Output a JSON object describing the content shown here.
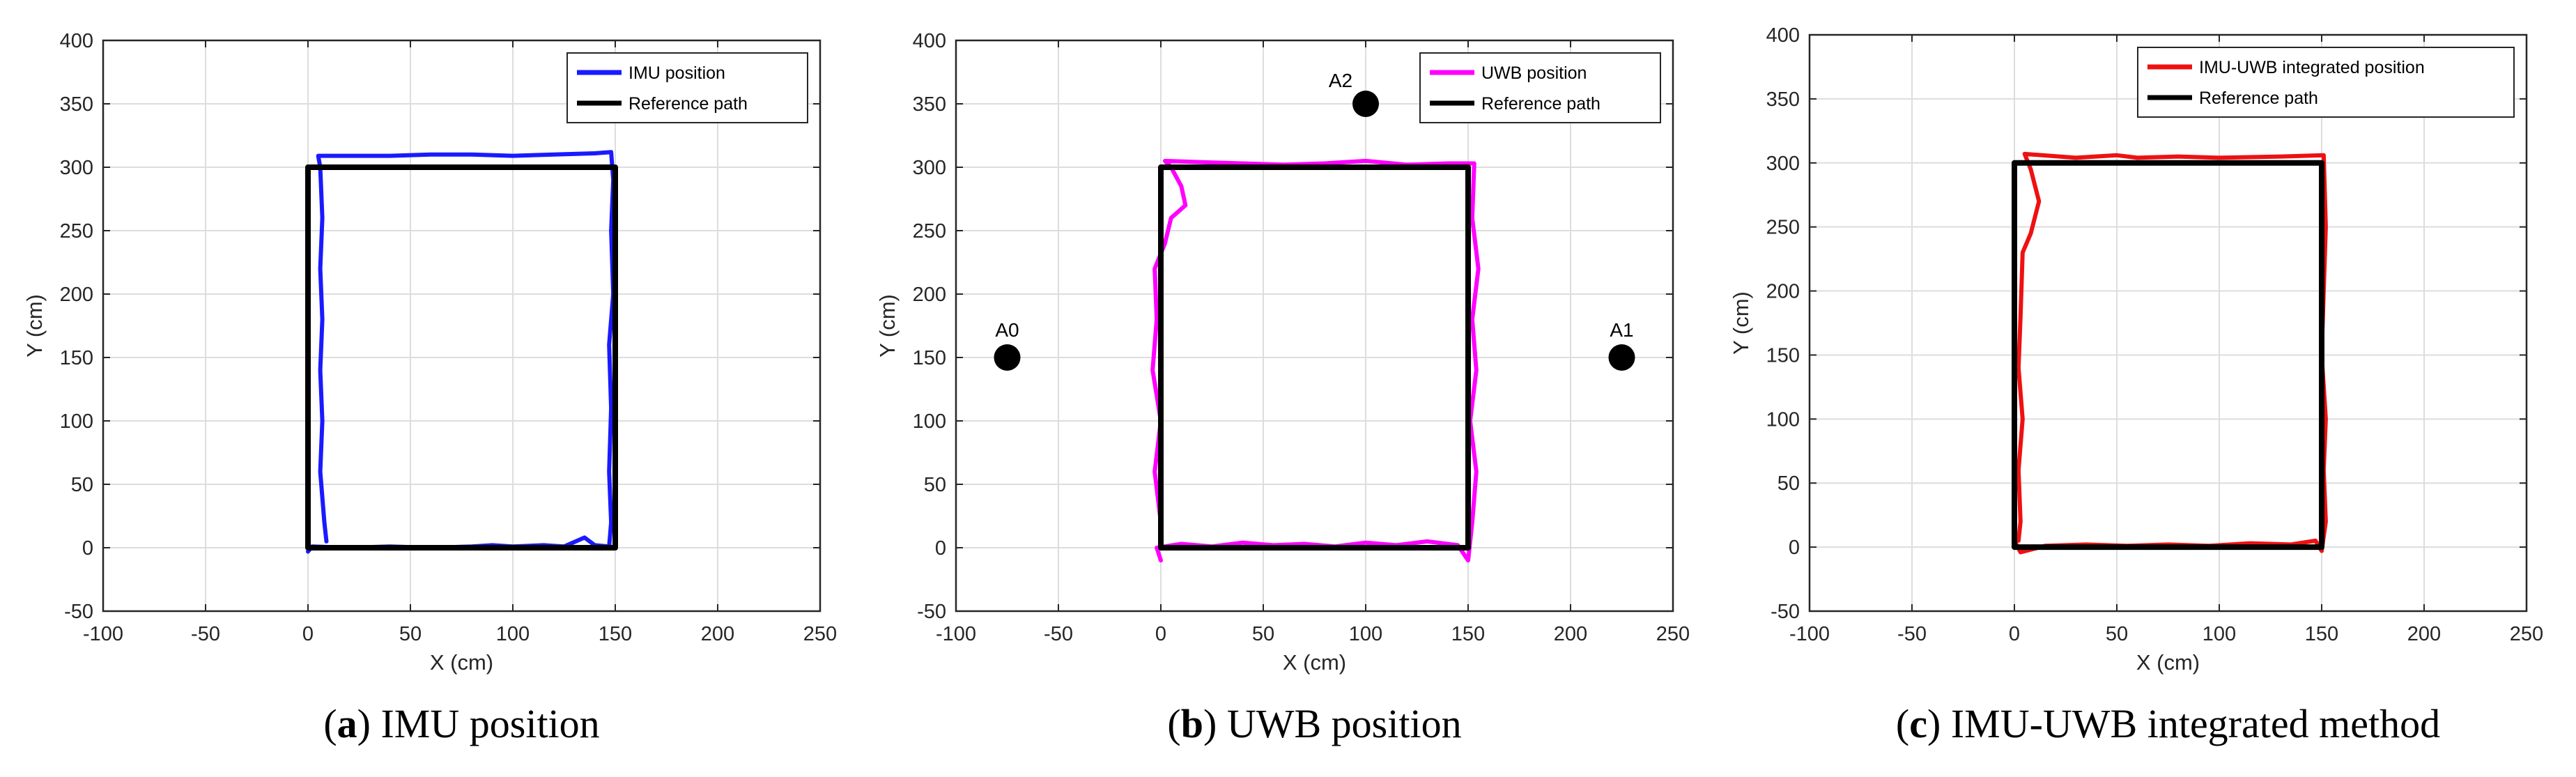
{
  "colors": {
    "imu": "#1a1aff",
    "uwb": "#ff00ff",
    "integrated": "#ee1111",
    "reference": "#000000",
    "grid": "#dddddd",
    "anchor": "#000000"
  },
  "chart_data": [
    {
      "type": "line",
      "caption_letter": "a",
      "caption_text": " IMU position",
      "xlabel": "X (cm)",
      "ylabel": "Y (cm)",
      "xlim": [
        -100,
        250
      ],
      "ylim": [
        -50,
        400
      ],
      "xticks": [
        -100,
        -50,
        0,
        50,
        100,
        150,
        200,
        250
      ],
      "yticks": [
        -50,
        0,
        50,
        100,
        150,
        200,
        250,
        300,
        350,
        400
      ],
      "grid": true,
      "legend_position": "top-right",
      "anchors": [],
      "series": [
        {
          "name": "IMU position",
          "color_key": "imu",
          "points": [
            [
              0,
              -3
            ],
            [
              2,
              1
            ],
            [
              20,
              0
            ],
            [
              40,
              1
            ],
            [
              60,
              0
            ],
            [
              80,
              1
            ],
            [
              90,
              2
            ],
            [
              100,
              1
            ],
            [
              115,
              2
            ],
            [
              125,
              1
            ],
            [
              135,
              8
            ],
            [
              140,
              2
            ],
            [
              147,
              1
            ],
            [
              148,
              20
            ],
            [
              147,
              60
            ],
            [
              148,
              110
            ],
            [
              147,
              160
            ],
            [
              149,
              200
            ],
            [
              148,
              250
            ],
            [
              149,
              290
            ],
            [
              148,
              312
            ],
            [
              140,
              311
            ],
            [
              120,
              310
            ],
            [
              100,
              309
            ],
            [
              80,
              310
            ],
            [
              60,
              310
            ],
            [
              40,
              309
            ],
            [
              20,
              309
            ],
            [
              5,
              309
            ],
            [
              6,
              300
            ],
            [
              7,
              260
            ],
            [
              6,
              220
            ],
            [
              7,
              180
            ],
            [
              6,
              140
            ],
            [
              7,
              100
            ],
            [
              6,
              60
            ],
            [
              8,
              20
            ],
            [
              9,
              5
            ]
          ]
        },
        {
          "name": "Reference path",
          "color_key": "reference",
          "points": [
            [
              0,
              0
            ],
            [
              150,
              0
            ],
            [
              150,
              300
            ],
            [
              0,
              300
            ],
            [
              0,
              0
            ]
          ]
        }
      ]
    },
    {
      "type": "line",
      "caption_letter": "b",
      "caption_text": " UWB position",
      "xlabel": "X (cm)",
      "ylabel": "Y (cm)",
      "xlim": [
        -100,
        250
      ],
      "ylim": [
        -50,
        400
      ],
      "xticks": [
        -100,
        -50,
        0,
        50,
        100,
        150,
        200,
        250
      ],
      "yticks": [
        -50,
        0,
        50,
        100,
        150,
        200,
        250,
        300,
        350,
        400
      ],
      "grid": true,
      "legend_position": "top-right",
      "anchors": [
        {
          "label": "A0",
          "x": -75,
          "y": 150
        },
        {
          "label": "A1",
          "x": 225,
          "y": 150
        },
        {
          "label": "A2",
          "x": 100,
          "y": 350
        }
      ],
      "series": [
        {
          "name": "UWB position",
          "color_key": "uwb",
          "points": [
            [
              0,
              -10
            ],
            [
              -2,
              0
            ],
            [
              10,
              3
            ],
            [
              25,
              1
            ],
            [
              40,
              4
            ],
            [
              55,
              2
            ],
            [
              70,
              3
            ],
            [
              85,
              1
            ],
            [
              100,
              4
            ],
            [
              115,
              2
            ],
            [
              130,
              5
            ],
            [
              145,
              2
            ],
            [
              150,
              -10
            ],
            [
              152,
              20
            ],
            [
              154,
              60
            ],
            [
              151,
              100
            ],
            [
              154,
              140
            ],
            [
              152,
              180
            ],
            [
              155,
              220
            ],
            [
              152,
              260
            ],
            [
              153,
              303
            ],
            [
              140,
              303
            ],
            [
              120,
              302
            ],
            [
              100,
              305
            ],
            [
              80,
              303
            ],
            [
              60,
              302
            ],
            [
              40,
              303
            ],
            [
              20,
              304
            ],
            [
              2,
              305
            ],
            [
              5,
              300
            ],
            [
              10,
              285
            ],
            [
              12,
              270
            ],
            [
              5,
              260
            ],
            [
              2,
              240
            ],
            [
              -3,
              220
            ],
            [
              -2,
              180
            ],
            [
              -4,
              140
            ],
            [
              0,
              100
            ],
            [
              -3,
              60
            ],
            [
              0,
              20
            ],
            [
              0,
              0
            ]
          ]
        },
        {
          "name": "Reference path",
          "color_key": "reference",
          "points": [
            [
              0,
              0
            ],
            [
              150,
              0
            ],
            [
              150,
              300
            ],
            [
              0,
              300
            ],
            [
              0,
              0
            ]
          ]
        }
      ]
    },
    {
      "type": "line",
      "caption_letter": "c",
      "caption_text": " IMU-UWB integrated method",
      "xlabel": "X (cm)",
      "ylabel": "Y (cm)",
      "xlim": [
        -100,
        250
      ],
      "ylim": [
        -50,
        400
      ],
      "xticks": [
        -100,
        -50,
        0,
        50,
        100,
        150,
        200,
        250
      ],
      "yticks": [
        -50,
        0,
        50,
        100,
        150,
        200,
        250,
        300,
        350,
        400
      ],
      "grid": true,
      "legend_position": "top-right",
      "anchors": [],
      "series": [
        {
          "name": "IMU-UWB integrated position",
          "color_key": "integrated",
          "points": [
            [
              0,
              5
            ],
            [
              3,
              -4
            ],
            [
              15,
              1
            ],
            [
              35,
              2
            ],
            [
              55,
              1
            ],
            [
              75,
              2
            ],
            [
              95,
              1
            ],
            [
              115,
              3
            ],
            [
              135,
              2
            ],
            [
              147,
              5
            ],
            [
              150,
              -3
            ],
            [
              152,
              20
            ],
            [
              151,
              60
            ],
            [
              152,
              100
            ],
            [
              150,
              150
            ],
            [
              151,
              200
            ],
            [
              152,
              250
            ],
            [
              151,
              306
            ],
            [
              130,
              305
            ],
            [
              100,
              304
            ],
            [
              80,
              305
            ],
            [
              60,
              304
            ],
            [
              50,
              306
            ],
            [
              30,
              304
            ],
            [
              5,
              307
            ],
            [
              8,
              295
            ],
            [
              12,
              270
            ],
            [
              8,
              245
            ],
            [
              4,
              230
            ],
            [
              3,
              180
            ],
            [
              2,
              140
            ],
            [
              4,
              100
            ],
            [
              2,
              60
            ],
            [
              3,
              20
            ],
            [
              2,
              5
            ]
          ]
        },
        {
          "name": "Reference path",
          "color_key": "reference",
          "points": [
            [
              0,
              0
            ],
            [
              150,
              0
            ],
            [
              150,
              300
            ],
            [
              0,
              300
            ],
            [
              0,
              0
            ]
          ]
        }
      ]
    }
  ]
}
